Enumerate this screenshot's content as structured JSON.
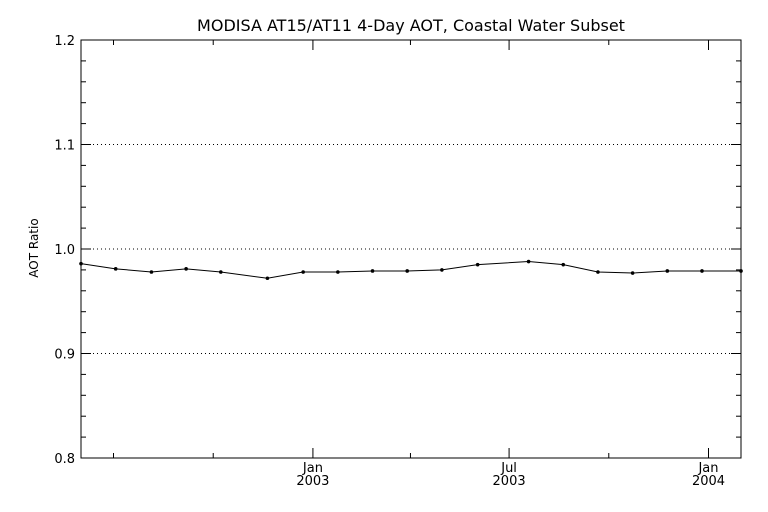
{
  "chart_data": {
    "type": "line",
    "title": "MODISA AT15/AT11 4-Day AOT, Coastal Water Subset",
    "xlabel": "",
    "ylabel": "AOT Ratio",
    "ylim": [
      0.8,
      1.2
    ],
    "xlim": [
      "2002-06-01",
      "2004-01-31"
    ],
    "y_ticks": [
      "0.8",
      "0.9",
      "1.0",
      "1.1",
      "1.2"
    ],
    "x_ticks": [
      {
        "month": "Jan",
        "year": "2003",
        "date": "2003-01-01"
      },
      {
        "month": "Jul",
        "year": "2003",
        "date": "2003-07-01"
      },
      {
        "month": "Jan",
        "year": "2004",
        "date": "2004-01-01"
      }
    ],
    "x_minor_ticks": [
      "2002-07-01",
      "2002-10-01",
      "2003-04-01",
      "2003-10-01"
    ],
    "grid": "horizontal-dotted",
    "series": [
      {
        "color": "#000000",
        "x": [
          "2002-06-01",
          "2002-07-03",
          "2002-08-05",
          "2002-09-06",
          "2002-10-08",
          "2002-11-20",
          "2002-12-23",
          "2003-01-24",
          "2003-02-25",
          "2003-03-29",
          "2003-04-30",
          "2003-06-02",
          "2003-07-19",
          "2003-08-20",
          "2003-09-21",
          "2003-10-23",
          "2003-11-24",
          "2003-12-26",
          "2004-01-31"
        ],
        "values": [
          0.986,
          0.981,
          0.978,
          0.981,
          0.978,
          0.972,
          0.978,
          0.978,
          0.979,
          0.979,
          0.98,
          0.985,
          0.988,
          0.985,
          0.978,
          0.977,
          0.979,
          0.979,
          0.979
        ]
      }
    ]
  }
}
